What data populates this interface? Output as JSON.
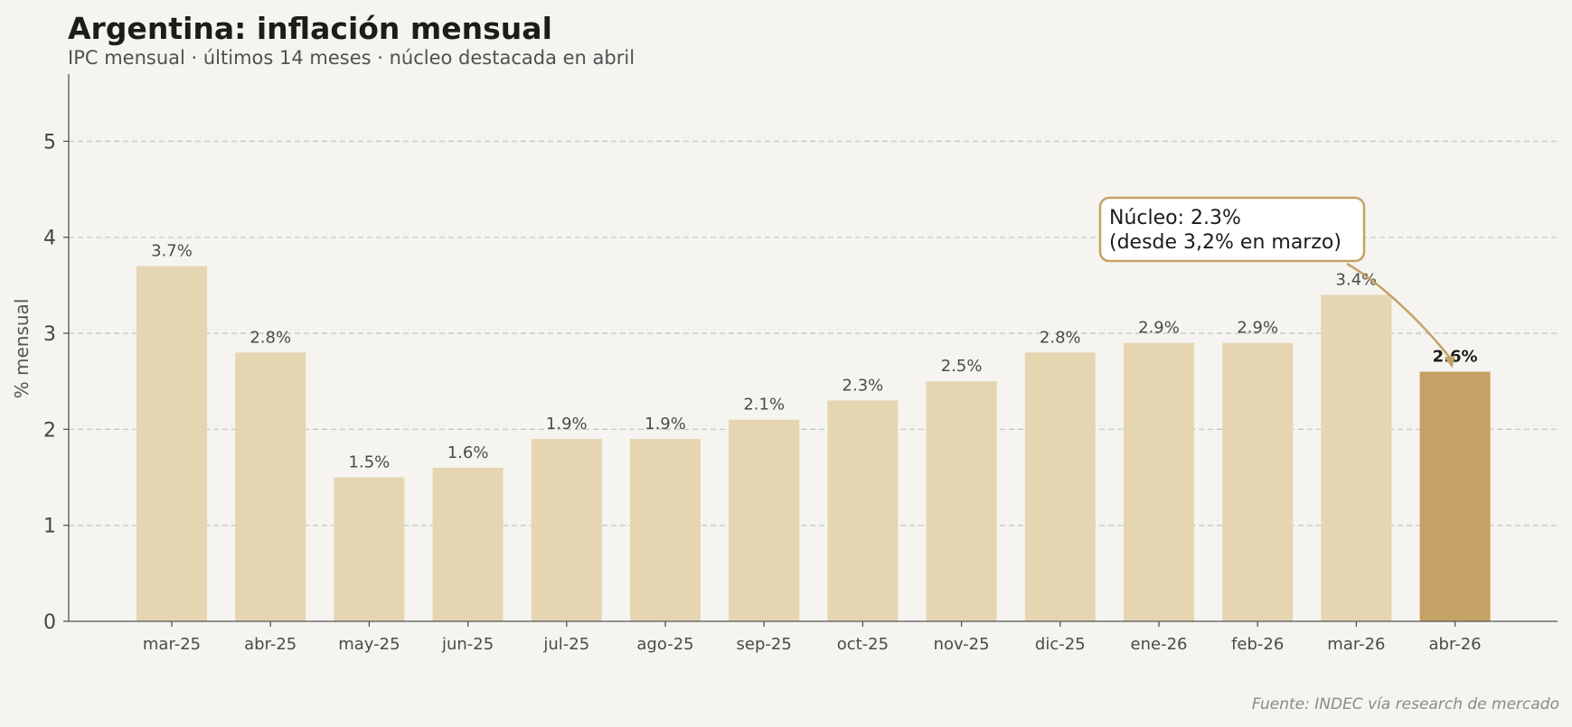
{
  "chart_data": {
    "type": "bar",
    "title": "Argentina: inflación mensual",
    "subtitle": "IPC mensual · últimos 14 meses · núcleo destacada en abril",
    "source": "Fuente: INDEC vía research de mercado",
    "ylabel": "% mensual",
    "xlabel": "",
    "ylim": [
      0,
      5.7
    ],
    "yticks": [
      0,
      1,
      2,
      3,
      4,
      5
    ],
    "grid": true,
    "categories": [
      "mar-25",
      "abr-25",
      "may-25",
      "jun-25",
      "jul-25",
      "ago-25",
      "sep-25",
      "oct-25",
      "nov-25",
      "dic-25",
      "ene-26",
      "feb-26",
      "mar-26",
      "abr-26"
    ],
    "values": [
      3.7,
      2.8,
      1.5,
      1.6,
      1.9,
      1.9,
      2.1,
      2.3,
      2.5,
      2.8,
      2.9,
      2.9,
      3.4,
      2.6
    ],
    "value_labels": [
      "3.7%",
      "2.8%",
      "1.5%",
      "1.6%",
      "1.9%",
      "1.9%",
      "2.1%",
      "2.3%",
      "2.5%",
      "2.8%",
      "2.9%",
      "2.9%",
      "3.4%",
      "2.6%"
    ],
    "highlight_index": 13,
    "colors": {
      "bar": "#e5d5b1",
      "highlight": "#c4a265",
      "annotation_border": "#c4a265",
      "grid": "#c8c8c8",
      "axis": "#555555"
    },
    "annotation": {
      "line1": "Núcleo: 2.3%",
      "line2": "(desde 3,2% en marzo)",
      "target_index": 13
    }
  }
}
